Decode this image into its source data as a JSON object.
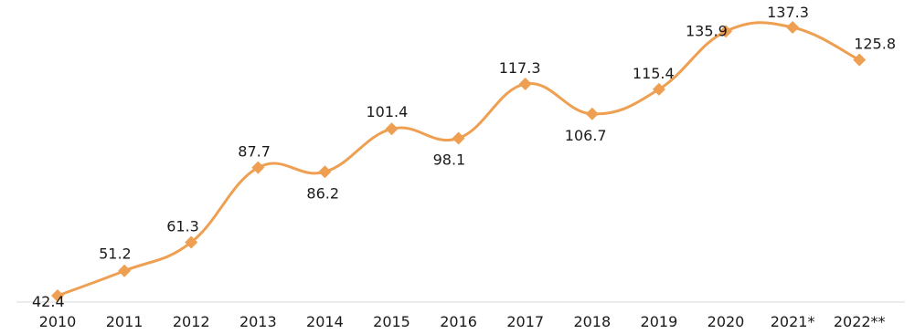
{
  "chart_data": {
    "type": "line",
    "title": "",
    "xlabel": "",
    "ylabel": "",
    "categories": [
      "2010",
      "2011",
      "2012",
      "2013",
      "2014",
      "2015",
      "2016",
      "2017",
      "2018",
      "2019",
      "2020",
      "2021*",
      "2022**"
    ],
    "series": [
      {
        "values": [
          42.4,
          51.2,
          61.3,
          87.7,
          86.2,
          101.4,
          98.1,
          117.3,
          106.7,
          115.4,
          135.9,
          137.3,
          125.8
        ],
        "labels": [
          "42.4",
          "51.2",
          "61.3",
          "87.7",
          "86.2",
          "101.4",
          "98.1",
          "117.3",
          "106.7",
          "115.4",
          "135.9",
          "137.3",
          "125.8"
        ]
      }
    ],
    "ylim": [
      40,
      140
    ],
    "grid": false,
    "legend": "none",
    "colors": {
      "line": "#ee9f51",
      "marker": "#ee9f51",
      "axis": "#d9d9d9",
      "text": "#1a1a1a"
    }
  }
}
